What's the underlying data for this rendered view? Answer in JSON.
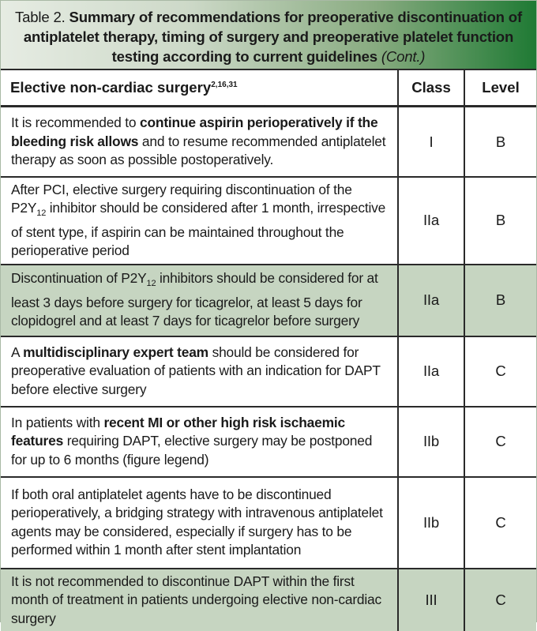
{
  "caption": {
    "label": "Table 2. ",
    "title": "Summary of recommendations for preoperative discontinuation of antiplatelet therapy, timing of surgery and preoperative platelet function testing according to current guidelines",
    "cont": "(Cont.)"
  },
  "header": {
    "section": "Elective non-cardiac surgery",
    "refs": "2,16,31",
    "class": "Class",
    "level": "Level"
  },
  "rows": [
    {
      "pre": "It is recommended to ",
      "bold": "continue aspirin perioperatively if the bleeding risk allows",
      "post": " and to resume recommended antiplatelet therapy as soon as possible postoperatively.",
      "class": "I",
      "level": "B",
      "shade": "white"
    },
    {
      "pre": "After PCI, elective surgery requiring discontinuation of the P2Y",
      "sub": "12",
      "post": " inhibitor should be considered after 1 month, irrespective of stent type, if aspirin can be maintained throughout the perioperative period",
      "class": "IIa",
      "level": "B",
      "shade": "white"
    },
    {
      "pre": "Discontinuation of P2Y",
      "sub": "12",
      "post": " inhibitors should be considered for at least 3 days before surgery for ticagrelor, at least 5 days for clopidogrel and at least 7 days for ticagrelor before surgery",
      "class": "IIa",
      "level": "B",
      "shade": "green"
    },
    {
      "pre": "A ",
      "bold": "multidisciplinary expert team",
      "post": " should be considered for preoperative evaluation of patients with an indication for DAPT before elective surgery",
      "class": "IIa",
      "level": "C",
      "shade": "white"
    },
    {
      "pre": "In patients with ",
      "bold": "recent MI or other high risk ischaemic features",
      "post": " requiring DAPT, elective surgery may be postponed for up to 6 months (figure legend)",
      "class": "IIb",
      "level": "C",
      "shade": "white"
    },
    {
      "pre": "If both oral antiplatelet agents have to be discontinued perioperatively, a bridging strategy with intravenous antiplatelet agents may be considered, especially if surgery has to be performed within 1 month after stent implantation",
      "class": "IIb",
      "level": "C",
      "shade": "white"
    },
    {
      "pre": "It is not recommended to discontinue DAPT within the first month of treatment in patients undergoing elective non-cardiac surgery",
      "class": "III",
      "level": "C",
      "shade": "green"
    }
  ]
}
